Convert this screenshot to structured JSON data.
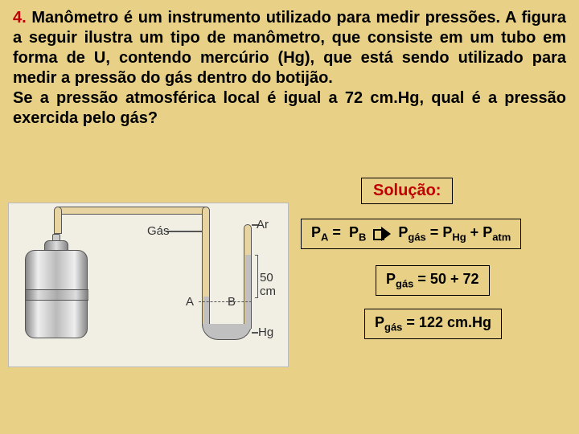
{
  "question": {
    "number": "4.",
    "text_before": " Manômetro é um instrumento utilizado para medir pressões. A figura a seguir ilustra um tipo de manômetro, que consiste em um tubo em forma de U, contendo mercúrio (Hg), que está sendo utilizado para medir a pressão do gás dentro do botijão.",
    "text_line2": "Se a pressão atmosférica local é igual a 72 cm.Hg, qual é a pressão exercida pelo gás?"
  },
  "solution_label": "Solução:",
  "equations": {
    "eq1_left_sub": "A",
    "eq1_left_var": "P",
    "eq1_op1": " = ",
    "eq1_mid_var": "P",
    "eq1_mid_sub": "B",
    "eq1_r1_var": "P",
    "eq1_r1_sub": "gás",
    "eq1_op2": " = ",
    "eq1_r2_var": "P",
    "eq1_r2_sub": "Hg",
    "eq1_op3": " + ",
    "eq1_r3_var": "P",
    "eq1_r3_sub": "atm",
    "eq2_var": "P",
    "eq2_sub": "gás",
    "eq2_rest": " = 50 + 72",
    "eq3_var": "P",
    "eq3_sub": "gás",
    "eq3_rest": " = 122 cm.Hg"
  },
  "figure": {
    "label_gas": "Gás",
    "label_ar": "Ar",
    "label_50": "50 cm",
    "label_a": "A",
    "label_b": "B",
    "label_hg": "Hg",
    "mercury_color": "#c0c0c0",
    "pipe_fill": "#e8d4a0",
    "background": "#f1efe4"
  },
  "colors": {
    "page_bg": "#e8d087",
    "accent": "#c00000",
    "text": "#000000"
  }
}
